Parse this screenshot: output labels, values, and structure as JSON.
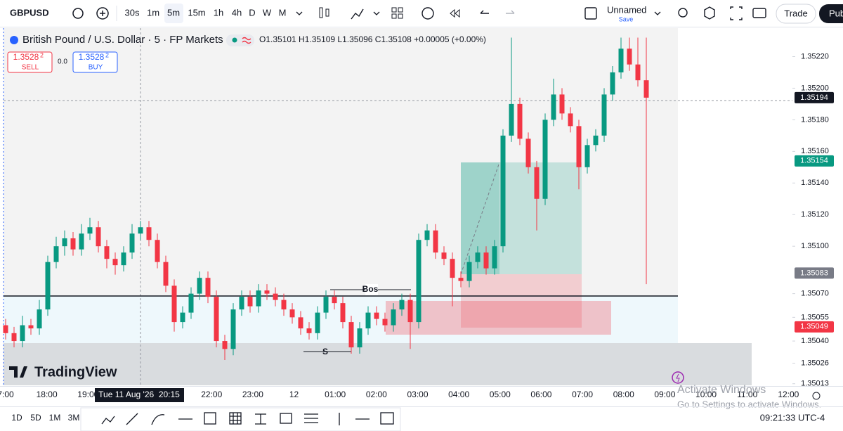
{
  "toolbar": {
    "symbol": "GBPUSD",
    "intervals": [
      "30s",
      "1m",
      "5m",
      "15m",
      "1h",
      "4h",
      "D",
      "W",
      "M"
    ],
    "layout_name": "Unnamed",
    "layout_status": "Save",
    "trade": "Trade",
    "publish": "Pub"
  },
  "legend": {
    "title": "British Pound / U.S. Dollar · 5 · FP Markets",
    "ohlc": "O1.35101 H1.35109 L1.35096 C1.35108 +0.00005 (+0.00%)",
    "sell": {
      "price": "1.3528",
      "pip": "2",
      "label": "SELL"
    },
    "spread": "0.0",
    "buy": {
      "price": "1.3528",
      "pip": "2",
      "label": "BUY"
    }
  },
  "chart_data": {
    "type": "candlestick",
    "colors": {
      "up": "#089981",
      "down": "#f23645"
    },
    "candles": [
      [
        1.3505,
        1.35054,
        1.35041,
        1.35045
      ],
      [
        1.35045,
        1.35049,
        1.35036,
        1.3504
      ],
      [
        1.3504,
        1.35056,
        1.35036,
        1.3505
      ],
      [
        1.3505,
        1.35054,
        1.35044,
        1.35048
      ],
      [
        1.35048,
        1.35066,
        1.35044,
        1.3506
      ],
      [
        1.3506,
        1.35094,
        1.35056,
        1.3509
      ],
      [
        1.3509,
        1.35106,
        1.35086,
        1.351
      ],
      [
        1.351,
        1.3511,
        1.35094,
        1.35105
      ],
      [
        1.35105,
        1.35109,
        1.35094,
        1.35098
      ],
      [
        1.35098,
        1.35114,
        1.35094,
        1.35108
      ],
      [
        1.35108,
        1.35118,
        1.35104,
        1.35112
      ],
      [
        1.35112,
        1.35116,
        1.35096,
        1.351
      ],
      [
        1.351,
        1.35104,
        1.35086,
        1.35092
      ],
      [
        1.35092,
        1.35096,
        1.35082,
        1.35088
      ],
      [
        1.35088,
        1.351,
        1.35084,
        1.35096
      ],
      [
        1.35096,
        1.35114,
        1.35092,
        1.35108
      ],
      [
        1.35108,
        1.35116,
        1.35104,
        1.35112
      ],
      [
        1.35112,
        1.35116,
        1.351,
        1.35104
      ],
      [
        1.35104,
        1.35108,
        1.35086,
        1.3509
      ],
      [
        1.3509,
        1.35094,
        1.35071,
        1.35075
      ],
      [
        1.35075,
        1.35079,
        1.35046,
        1.35052
      ],
      [
        1.35052,
        1.35062,
        1.35048,
        1.35058
      ],
      [
        1.35058,
        1.35074,
        1.35054,
        1.3507
      ],
      [
        1.3507,
        1.35084,
        1.35066,
        1.3508
      ],
      [
        1.3508,
        1.35084,
        1.35064,
        1.35068
      ],
      [
        1.35068,
        1.35072,
        1.35036,
        1.3504
      ],
      [
        1.3504,
        1.35044,
        1.35028,
        1.35035
      ],
      [
        1.35035,
        1.35064,
        1.35031,
        1.3506
      ],
      [
        1.3506,
        1.35072,
        1.35056,
        1.35068
      ],
      [
        1.35068,
        1.35072,
        1.35058,
        1.35062
      ],
      [
        1.35062,
        1.35076,
        1.35058,
        1.35072
      ],
      [
        1.35072,
        1.35076,
        1.35066,
        1.3507
      ],
      [
        1.3507,
        1.35074,
        1.35062,
        1.35066
      ],
      [
        1.35066,
        1.3507,
        1.35056,
        1.3506
      ],
      [
        1.3506,
        1.35064,
        1.35051,
        1.35055
      ],
      [
        1.35055,
        1.35059,
        1.35044,
        1.35048
      ],
      [
        1.35048,
        1.35052,
        1.35041,
        1.35045
      ],
      [
        1.35045,
        1.35062,
        1.35041,
        1.35058
      ],
      [
        1.35058,
        1.35072,
        1.35054,
        1.35068
      ],
      [
        1.35068,
        1.35072,
        1.3506,
        1.35064
      ],
      [
        1.35064,
        1.35068,
        1.35048,
        1.35052
      ],
      [
        1.35052,
        1.35056,
        1.35032,
        1.35036
      ],
      [
        1.35036,
        1.35052,
        1.35032,
        1.35048
      ],
      [
        1.35048,
        1.35062,
        1.35044,
        1.35058
      ],
      [
        1.35058,
        1.35062,
        1.3505,
        1.35054
      ],
      [
        1.35054,
        1.35058,
        1.35046,
        1.3505
      ],
      [
        1.3505,
        1.35064,
        1.35046,
        1.3506
      ],
      [
        1.3506,
        1.3507,
        1.35056,
        1.35066
      ],
      [
        1.35066,
        1.3507,
        1.35035,
        1.35052
      ],
      [
        1.35052,
        1.35108,
        1.35048,
        1.35104
      ],
      [
        1.35104,
        1.35114,
        1.351,
        1.3511
      ],
      [
        1.3511,
        1.35114,
        1.35092,
        1.35096
      ],
      [
        1.35096,
        1.351,
        1.35088,
        1.35092
      ],
      [
        1.35092,
        1.35096,
        1.35062,
        1.3508
      ],
      [
        1.3508,
        1.35084,
        1.35074,
        1.35078
      ],
      [
        1.35078,
        1.35094,
        1.35074,
        1.3509
      ],
      [
        1.3509,
        1.351,
        1.35086,
        1.35096
      ],
      [
        1.35096,
        1.351,
        1.35082,
        1.35086
      ],
      [
        1.35086,
        1.35104,
        1.35082,
        1.351
      ],
      [
        1.351,
        1.35174,
        1.35096,
        1.3517
      ],
      [
        1.3517,
        1.35232,
        1.35166,
        1.3519
      ],
      [
        1.3519,
        1.35194,
        1.35164,
        1.35168
      ],
      [
        1.35168,
        1.35172,
        1.35146,
        1.3515
      ],
      [
        1.3515,
        1.35154,
        1.3511,
        1.3513
      ],
      [
        1.3513,
        1.35184,
        1.35126,
        1.3518
      ],
      [
        1.3518,
        1.35206,
        1.35176,
        1.35196
      ],
      [
        1.35196,
        1.352,
        1.3518,
        1.35184
      ],
      [
        1.35184,
        1.35188,
        1.35172,
        1.35176
      ],
      [
        1.35176,
        1.3518,
        1.35136,
        1.3515
      ],
      [
        1.3515,
        1.35168,
        1.35146,
        1.35164
      ],
      [
        1.35164,
        1.35174,
        1.3516,
        1.3517
      ],
      [
        1.3517,
        1.352,
        1.35166,
        1.35196
      ],
      [
        1.35196,
        1.35214,
        1.35192,
        1.3521
      ],
      [
        1.3521,
        1.35232,
        1.35206,
        1.35225
      ],
      [
        1.35225,
        1.35232,
        1.35211,
        1.35215
      ],
      [
        1.35215,
        1.35232,
        1.35201,
        1.35205
      ],
      [
        1.35205,
        1.35232,
        1.35076,
        1.35194
      ]
    ],
    "ylim": [
      1.35012,
      1.35238
    ],
    "yticks": [
      {
        "value": 1.3522,
        "label": "1.35220"
      },
      {
        "value": 1.352,
        "label": "1.35200"
      },
      {
        "value": 1.3518,
        "label": "1.35180"
      },
      {
        "value": 1.3516,
        "label": "1.35160"
      },
      {
        "value": 1.3514,
        "label": "1.35140"
      },
      {
        "value": 1.3512,
        "label": "1.35120"
      },
      {
        "value": 1.351,
        "label": "1.35100"
      },
      {
        "value": 1.3507,
        "label": "1.35070"
      },
      1.35055,
      {
        "value": 1.3504,
        "label": "1.35040"
      },
      1.35026,
      1.35013
    ],
    "price_tags": [
      {
        "value": 1.35194,
        "color": "#131722"
      },
      {
        "value": 1.35154,
        "color": "#089981"
      },
      {
        "value": 1.35083,
        "color": "#787b86"
      },
      {
        "value": 1.35049,
        "color": "#f23645"
      }
    ],
    "x_labels": [
      "7:00",
      "18:00",
      "19:00",
      null,
      null,
      "22:00",
      "23:00",
      "12",
      "01:00",
      "02:00",
      "03:00",
      "04:00",
      "05:00",
      "06:00",
      "07:00",
      "08:00",
      "09:00",
      "10:00",
      "11:00",
      "12:00"
    ],
    "crosshair_label": "Tue 11 Aug '26  20:15",
    "annotations": [
      "Bos",
      "S"
    ]
  },
  "watermark": "TradingView",
  "bottom_bar": {
    "ranges": [
      "1D",
      "5D",
      "1M",
      "3M"
    ],
    "clock": "09:21:33 UTC-4"
  },
  "os_notice": {
    "title": "Activate Windows",
    "detail": "Go to Settings to activate Windows."
  }
}
